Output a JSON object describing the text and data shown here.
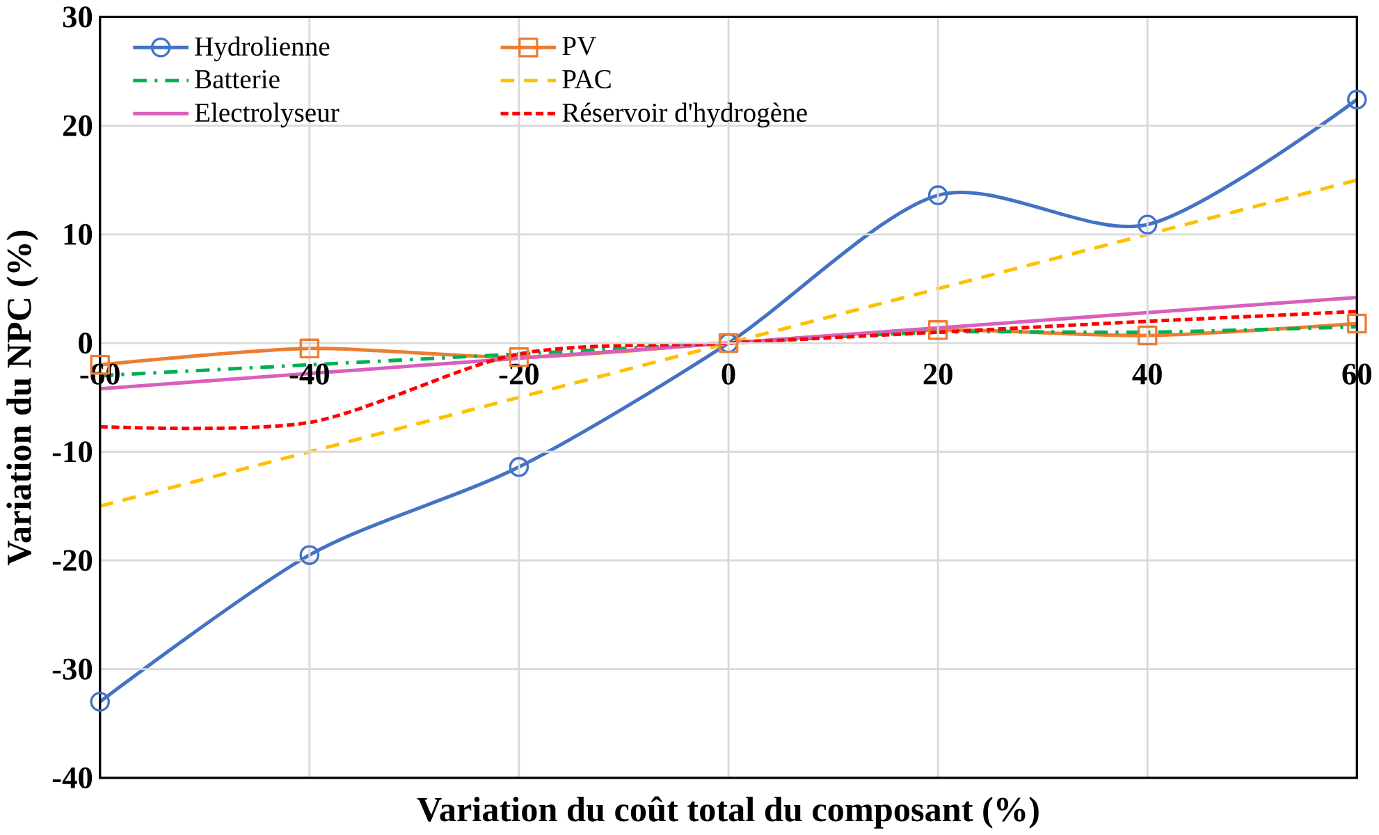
{
  "chart_data": {
    "type": "line",
    "xlabel": "Variation du coût total du composant (%)",
    "ylabel": "Variation du NPC (%)",
    "x": [
      -60,
      -40,
      -20,
      0,
      20,
      40,
      60
    ],
    "xlim": [
      -60,
      60
    ],
    "xticks": [
      -60,
      -40,
      -20,
      0,
      20,
      40,
      60
    ],
    "ylim": [
      -40,
      30
    ],
    "yticks": [
      -40,
      -30,
      -20,
      -10,
      0,
      10,
      20,
      30
    ],
    "grid": true,
    "legend": "top",
    "series": [
      {
        "name": "Hydrolienne",
        "color": "#4472c4",
        "marker": "circle",
        "line_style": "solid",
        "values": [
          -33,
          -19.5,
          -11.4,
          0,
          13.6,
          10.9,
          22.4
        ]
      },
      {
        "name": "PV",
        "color": "#ed7d31",
        "marker": "square",
        "line_style": "solid",
        "values": [
          -2,
          -0.5,
          -1.3,
          0,
          1.2,
          0.7,
          1.8
        ]
      },
      {
        "name": "Batterie",
        "color": "#00b050",
        "marker": "none",
        "line_style": "dashdot",
        "values": [
          -3,
          -2,
          -1,
          0,
          1,
          1,
          1.5
        ]
      },
      {
        "name": "PAC",
        "color": "#ffc000",
        "marker": "none",
        "line_style": "dashed",
        "values": [
          -15,
          -10,
          -5,
          0,
          5,
          10,
          15
        ]
      },
      {
        "name": "Electrolyseur",
        "color": "#d95fbd",
        "marker": "none",
        "line_style": "solid",
        "values": [
          -4.2,
          -2.8,
          -1.4,
          0,
          1.4,
          2.8,
          4.2
        ]
      },
      {
        "name": "Réservoir d'hydrogène",
        "color": "#ff0000",
        "marker": "none",
        "line_style": "dotted",
        "values": [
          -7.7,
          -7.3,
          -1,
          0,
          1,
          2,
          2.9
        ]
      }
    ]
  }
}
